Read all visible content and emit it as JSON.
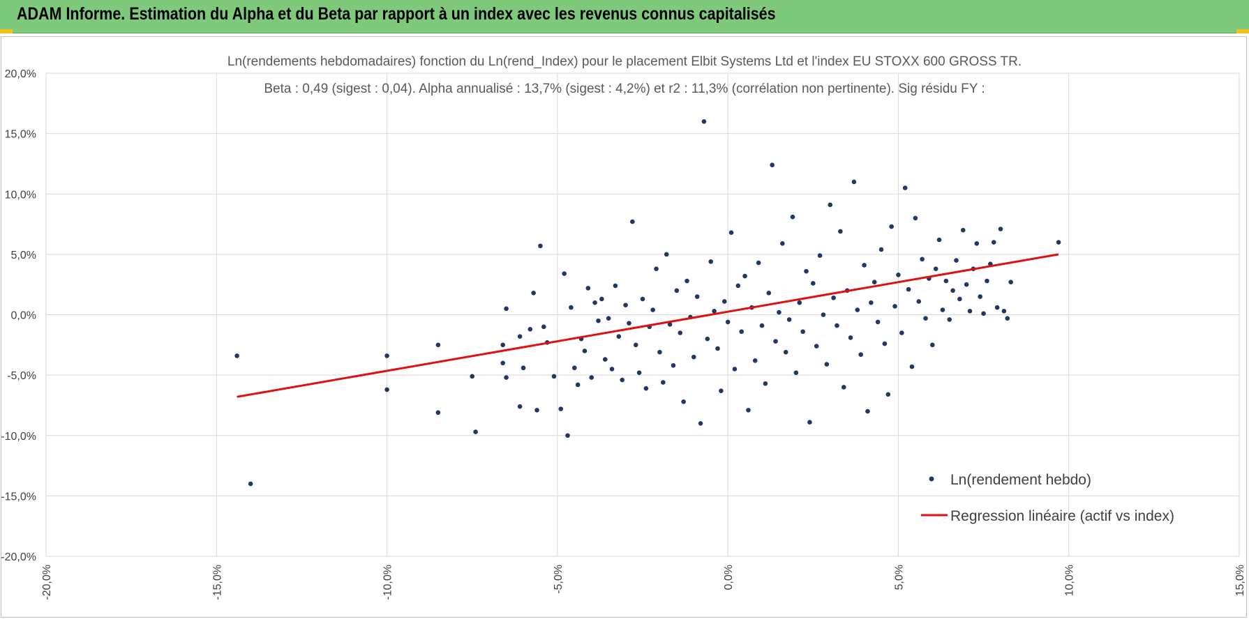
{
  "header": {
    "title": "ADAM Informe. Estimation du Alpha et du Beta par rapport à un index avec les revenus connus capitalisés"
  },
  "colors": {
    "header_bg": "#7fc97c",
    "points": "#1f3864",
    "regression": "#e01010",
    "grid": "#d9d9d9",
    "corner_accent": "#f2c21b"
  },
  "chart_data": {
    "type": "scatter",
    "title_line1": "Ln(rendements hebdomadaires) fonction du Ln(rend_Index) pour le placement Elbit Systems Ltd et l'index EU STOXX 600 GROSS TR.",
    "title_line2": "Beta : 0,49 (sigest : 0,04).  Alpha annualisé : 13,7% (sigest : 4,2%) et r2 : 11,3% (corrélation non pertinente). Sig résidu FY :",
    "xlim": [
      -0.2,
      0.15
    ],
    "ylim": [
      -0.2,
      0.2
    ],
    "x_ticks": [
      -0.2,
      -0.15,
      -0.1,
      -0.05,
      0.0,
      0.05,
      0.1,
      0.15
    ],
    "y_ticks": [
      -0.2,
      -0.15,
      -0.1,
      -0.05,
      0.0,
      0.05,
      0.1,
      0.15,
      0.2
    ],
    "x_tick_labels": [
      "-20,0%",
      "-15,0%",
      "-10,0%",
      "-5,0%",
      "0,0%",
      "5,0%",
      "10,0%",
      "15,0%"
    ],
    "y_tick_labels": [
      "-20,0%",
      "-15,0%",
      "-10,0%",
      "-5,0%",
      "0,0%",
      "5,0%",
      "10,0%",
      "15,0%",
      "20,0%"
    ],
    "grid": true,
    "legend_position": "bottom-right",
    "series": [
      {
        "name": "Ln(rendement hebdo)",
        "kind": "scatter",
        "points": [
          [
            -0.144,
            -0.034
          ],
          [
            -0.14,
            -0.14
          ],
          [
            -0.1,
            -0.034
          ],
          [
            -0.1,
            -0.062
          ],
          [
            -0.085,
            -0.025
          ],
          [
            -0.085,
            -0.081
          ],
          [
            -0.075,
            -0.051
          ],
          [
            -0.074,
            -0.097
          ],
          [
            -0.065,
            0.005
          ],
          [
            -0.066,
            -0.025
          ],
          [
            -0.066,
            -0.04
          ],
          [
            -0.065,
            -0.052
          ],
          [
            -0.061,
            -0.076
          ],
          [
            -0.061,
            -0.018
          ],
          [
            -0.06,
            -0.044
          ],
          [
            -0.058,
            -0.012
          ],
          [
            -0.057,
            0.018
          ],
          [
            -0.056,
            -0.079
          ],
          [
            -0.055,
            0.057
          ],
          [
            -0.054,
            -0.01
          ],
          [
            -0.053,
            -0.023
          ],
          [
            -0.051,
            -0.051
          ],
          [
            -0.049,
            -0.078
          ],
          [
            -0.048,
            0.034
          ],
          [
            -0.047,
            -0.1
          ],
          [
            -0.046,
            0.006
          ],
          [
            -0.045,
            -0.044
          ],
          [
            -0.044,
            -0.058
          ],
          [
            -0.043,
            -0.02
          ],
          [
            -0.042,
            -0.03
          ],
          [
            -0.041,
            0.022
          ],
          [
            -0.04,
            -0.052
          ],
          [
            -0.039,
            0.01
          ],
          [
            -0.038,
            -0.005
          ],
          [
            -0.037,
            0.013
          ],
          [
            -0.036,
            -0.037
          ],
          [
            -0.035,
            -0.003
          ],
          [
            -0.034,
            -0.045
          ],
          [
            -0.033,
            0.024
          ],
          [
            -0.032,
            -0.018
          ],
          [
            -0.031,
            -0.054
          ],
          [
            -0.03,
            0.008
          ],
          [
            -0.029,
            -0.007
          ],
          [
            -0.028,
            0.077
          ],
          [
            -0.027,
            -0.025
          ],
          [
            -0.026,
            -0.048
          ],
          [
            -0.025,
            0.013
          ],
          [
            -0.024,
            -0.061
          ],
          [
            -0.023,
            -0.01
          ],
          [
            -0.022,
            0.004
          ],
          [
            -0.021,
            0.038
          ],
          [
            -0.02,
            -0.031
          ],
          [
            -0.019,
            -0.056
          ],
          [
            -0.018,
            0.05
          ],
          [
            -0.017,
            -0.008
          ],
          [
            -0.016,
            -0.042
          ],
          [
            -0.015,
            0.02
          ],
          [
            -0.014,
            -0.015
          ],
          [
            -0.013,
            -0.072
          ],
          [
            -0.012,
            0.028
          ],
          [
            -0.011,
            -0.002
          ],
          [
            -0.01,
            -0.035
          ],
          [
            -0.009,
            0.015
          ],
          [
            -0.008,
            -0.09
          ],
          [
            -0.007,
            0.16
          ],
          [
            -0.006,
            -0.02
          ],
          [
            -0.005,
            0.044
          ],
          [
            -0.004,
            0.003
          ],
          [
            -0.003,
            -0.028
          ],
          [
            -0.002,
            -0.063
          ],
          [
            -0.001,
            0.011
          ],
          [
            0.0,
            -0.006
          ],
          [
            0.001,
            0.068
          ],
          [
            0.002,
            -0.045
          ],
          [
            0.003,
            0.024
          ],
          [
            0.004,
            -0.014
          ],
          [
            0.005,
            0.032
          ],
          [
            0.006,
            -0.079
          ],
          [
            0.007,
            0.006
          ],
          [
            0.008,
            -0.038
          ],
          [
            0.009,
            0.043
          ],
          [
            0.01,
            -0.009
          ],
          [
            0.011,
            -0.057
          ],
          [
            0.012,
            0.018
          ],
          [
            0.013,
            0.124
          ],
          [
            0.014,
            -0.022
          ],
          [
            0.015,
            0.002
          ],
          [
            0.016,
            0.059
          ],
          [
            0.017,
            -0.031
          ],
          [
            0.018,
            -0.004
          ],
          [
            0.019,
            0.081
          ],
          [
            0.02,
            -0.048
          ],
          [
            0.021,
            0.01
          ],
          [
            0.022,
            -0.014
          ],
          [
            0.023,
            0.036
          ],
          [
            0.024,
            -0.089
          ],
          [
            0.025,
            0.026
          ],
          [
            0.026,
            -0.026
          ],
          [
            0.027,
            0.049
          ],
          [
            0.028,
            0.0
          ],
          [
            0.029,
            -0.041
          ],
          [
            0.03,
            0.091
          ],
          [
            0.031,
            0.014
          ],
          [
            0.032,
            -0.009
          ],
          [
            0.033,
            0.069
          ],
          [
            0.034,
            -0.06
          ],
          [
            0.035,
            0.02
          ],
          [
            0.036,
            -0.019
          ],
          [
            0.037,
            0.11
          ],
          [
            0.038,
            0.004
          ],
          [
            0.039,
            -0.033
          ],
          [
            0.04,
            0.041
          ],
          [
            0.041,
            -0.08
          ],
          [
            0.042,
            0.01
          ],
          [
            0.043,
            0.027
          ],
          [
            0.044,
            -0.006
          ],
          [
            0.045,
            0.054
          ],
          [
            0.046,
            -0.024
          ],
          [
            0.047,
            -0.066
          ],
          [
            0.048,
            0.073
          ],
          [
            0.049,
            0.007
          ],
          [
            0.05,
            0.033
          ],
          [
            0.051,
            -0.015
          ],
          [
            0.052,
            0.105
          ],
          [
            0.053,
            0.021
          ],
          [
            0.054,
            -0.043
          ],
          [
            0.055,
            0.08
          ],
          [
            0.056,
            0.011
          ],
          [
            0.057,
            0.046
          ],
          [
            0.058,
            -0.003
          ],
          [
            0.059,
            0.03
          ],
          [
            0.06,
            -0.025
          ],
          [
            0.061,
            0.038
          ],
          [
            0.062,
            0.062
          ],
          [
            0.063,
            0.004
          ],
          [
            0.064,
            0.028
          ],
          [
            0.065,
            -0.004
          ],
          [
            0.066,
            0.02
          ],
          [
            0.067,
            0.045
          ],
          [
            0.068,
            0.013
          ],
          [
            0.069,
            0.07
          ],
          [
            0.07,
            0.025
          ],
          [
            0.071,
            0.003
          ],
          [
            0.072,
            0.038
          ],
          [
            0.073,
            0.059
          ],
          [
            0.074,
            0.015
          ],
          [
            0.075,
            0.001
          ],
          [
            0.076,
            0.028
          ],
          [
            0.077,
            0.042
          ],
          [
            0.078,
            0.06
          ],
          [
            0.079,
            0.006
          ],
          [
            0.08,
            0.071
          ],
          [
            0.081,
            0.003
          ],
          [
            0.082,
            -0.003
          ],
          [
            0.083,
            0.027
          ],
          [
            0.097,
            0.06
          ]
        ]
      },
      {
        "name": "Regression linéaire (actif vs index)",
        "kind": "line",
        "points": [
          [
            -0.144,
            -0.068
          ],
          [
            0.097,
            0.05
          ]
        ]
      }
    ]
  }
}
